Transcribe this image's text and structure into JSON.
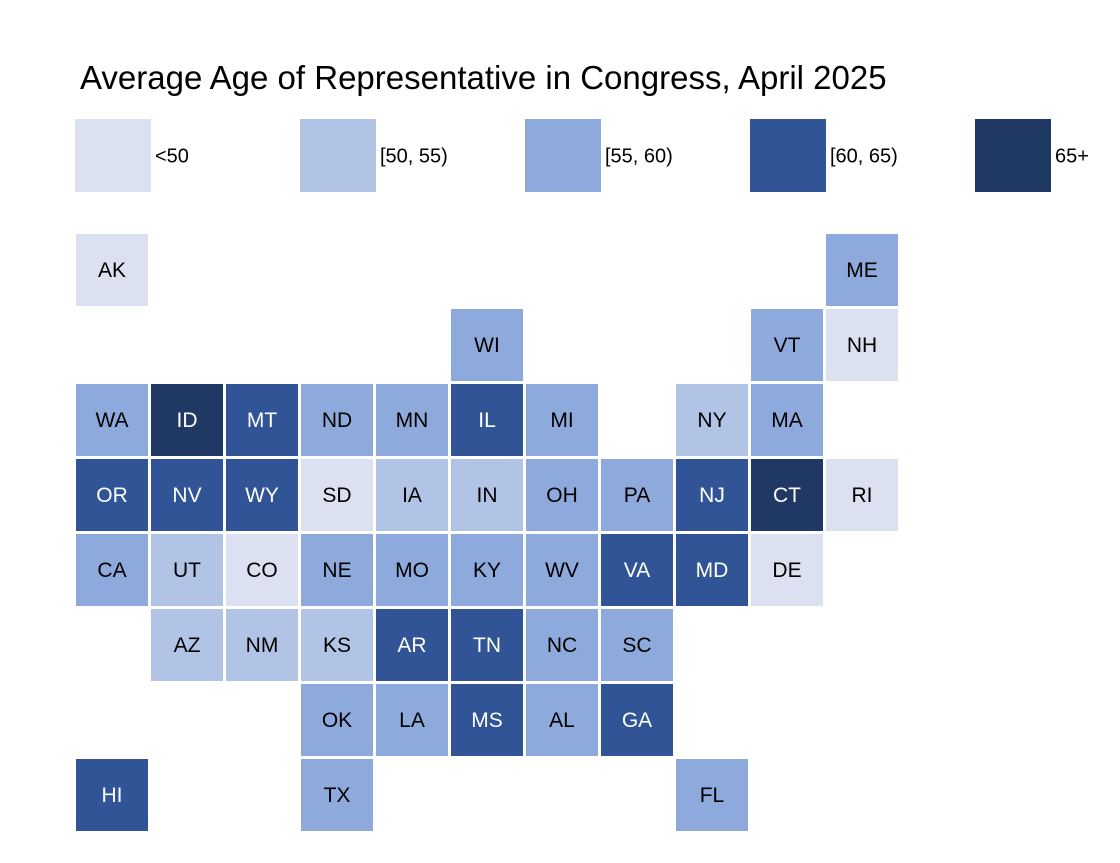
{
  "title": "Average Age of Representative in Congress, April 2025",
  "legend": [
    {
      "label": "<50",
      "color": "#dbe1f1"
    },
    {
      "label": "[50, 55)",
      "color": "#b2c4e6"
    },
    {
      "label": "[55, 60)",
      "color": "#8ea9db"
    },
    {
      "label": "[60, 65)",
      "color": "#305496"
    },
    {
      "label": "65+",
      "color": "#203864"
    }
  ],
  "chart_data": {
    "type": "heatmap",
    "title": "Average Age of Representative in Congress, April 2025",
    "categories": [
      "<50",
      "[50, 55)",
      "[55, 60)",
      "[60, 65)",
      "65+"
    ],
    "tiles": [
      {
        "state": "AK",
        "row": 0,
        "col": 0,
        "bin": 0
      },
      {
        "state": "ME",
        "row": 0,
        "col": 10,
        "bin": 2
      },
      {
        "state": "WI",
        "row": 1,
        "col": 5,
        "bin": 2
      },
      {
        "state": "VT",
        "row": 1,
        "col": 9,
        "bin": 2
      },
      {
        "state": "NH",
        "row": 1,
        "col": 10,
        "bin": 0
      },
      {
        "state": "WA",
        "row": 2,
        "col": 0,
        "bin": 2
      },
      {
        "state": "ID",
        "row": 2,
        "col": 1,
        "bin": 4
      },
      {
        "state": "MT",
        "row": 2,
        "col": 2,
        "bin": 3
      },
      {
        "state": "ND",
        "row": 2,
        "col": 3,
        "bin": 2
      },
      {
        "state": "MN",
        "row": 2,
        "col": 4,
        "bin": 2
      },
      {
        "state": "IL",
        "row": 2,
        "col": 5,
        "bin": 3
      },
      {
        "state": "MI",
        "row": 2,
        "col": 6,
        "bin": 2
      },
      {
        "state": "NY",
        "row": 2,
        "col": 8,
        "bin": 1
      },
      {
        "state": "MA",
        "row": 2,
        "col": 9,
        "bin": 2
      },
      {
        "state": "OR",
        "row": 3,
        "col": 0,
        "bin": 3
      },
      {
        "state": "NV",
        "row": 3,
        "col": 1,
        "bin": 3
      },
      {
        "state": "WY",
        "row": 3,
        "col": 2,
        "bin": 3
      },
      {
        "state": "SD",
        "row": 3,
        "col": 3,
        "bin": 0
      },
      {
        "state": "IA",
        "row": 3,
        "col": 4,
        "bin": 1
      },
      {
        "state": "IN",
        "row": 3,
        "col": 5,
        "bin": 1
      },
      {
        "state": "OH",
        "row": 3,
        "col": 6,
        "bin": 2
      },
      {
        "state": "PA",
        "row": 3,
        "col": 7,
        "bin": 2
      },
      {
        "state": "NJ",
        "row": 3,
        "col": 8,
        "bin": 3
      },
      {
        "state": "CT",
        "row": 3,
        "col": 9,
        "bin": 4
      },
      {
        "state": "RI",
        "row": 3,
        "col": 10,
        "bin": 0
      },
      {
        "state": "CA",
        "row": 4,
        "col": 0,
        "bin": 2
      },
      {
        "state": "UT",
        "row": 4,
        "col": 1,
        "bin": 1
      },
      {
        "state": "CO",
        "row": 4,
        "col": 2,
        "bin": 0
      },
      {
        "state": "NE",
        "row": 4,
        "col": 3,
        "bin": 2
      },
      {
        "state": "MO",
        "row": 4,
        "col": 4,
        "bin": 2
      },
      {
        "state": "KY",
        "row": 4,
        "col": 5,
        "bin": 2
      },
      {
        "state": "WV",
        "row": 4,
        "col": 6,
        "bin": 2
      },
      {
        "state": "VA",
        "row": 4,
        "col": 7,
        "bin": 3
      },
      {
        "state": "MD",
        "row": 4,
        "col": 8,
        "bin": 3
      },
      {
        "state": "DE",
        "row": 4,
        "col": 9,
        "bin": 0
      },
      {
        "state": "AZ",
        "row": 5,
        "col": 1,
        "bin": 1
      },
      {
        "state": "NM",
        "row": 5,
        "col": 2,
        "bin": 1
      },
      {
        "state": "KS",
        "row": 5,
        "col": 3,
        "bin": 1
      },
      {
        "state": "AR",
        "row": 5,
        "col": 4,
        "bin": 3
      },
      {
        "state": "TN",
        "row": 5,
        "col": 5,
        "bin": 3
      },
      {
        "state": "NC",
        "row": 5,
        "col": 6,
        "bin": 2
      },
      {
        "state": "SC",
        "row": 5,
        "col": 7,
        "bin": 2
      },
      {
        "state": "OK",
        "row": 6,
        "col": 3,
        "bin": 2
      },
      {
        "state": "LA",
        "row": 6,
        "col": 4,
        "bin": 2
      },
      {
        "state": "MS",
        "row": 6,
        "col": 5,
        "bin": 3
      },
      {
        "state": "AL",
        "row": 6,
        "col": 6,
        "bin": 2
      },
      {
        "state": "GA",
        "row": 6,
        "col": 7,
        "bin": 3
      },
      {
        "state": "HI",
        "row": 7,
        "col": 0,
        "bin": 3
      },
      {
        "state": "TX",
        "row": 7,
        "col": 3,
        "bin": 2
      },
      {
        "state": "FL",
        "row": 7,
        "col": 8,
        "bin": 2
      }
    ]
  }
}
